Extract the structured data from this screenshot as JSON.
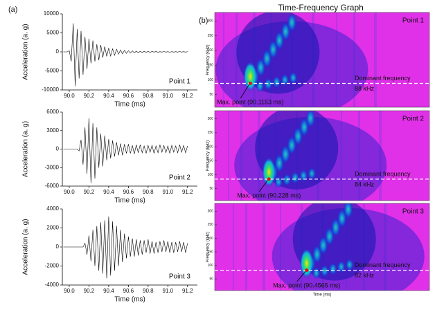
{
  "panel_labels": [
    "(a)",
    "(b)"
  ],
  "title": "Time-Frequency Graph",
  "chart_data": [
    {
      "type": "line",
      "color": "#000000",
      "point_label": "Point 1",
      "x_label": "Time (ms)",
      "y_label": "Acceleration (a. g)",
      "xlim": [
        89.93,
        91.3
      ],
      "ylim": [
        -10000,
        10000
      ],
      "xticks": [
        {
          "value": 90,
          "label": "90.0"
        },
        90.2,
        90.4,
        90.6,
        90.8,
        {
          "value": 91,
          "label": "91.0"
        },
        91.2
      ],
      "yticks": [
        -10000,
        -5000,
        0,
        5000,
        10000
      ],
      "x": [
        89.94,
        89.96,
        89.98,
        90.0,
        90.02,
        90.04,
        90.06,
        90.08,
        90.1,
        90.12,
        90.14,
        90.16,
        90.18,
        90.2,
        90.22,
        90.24,
        90.26,
        90.28,
        90.3,
        90.32,
        90.34,
        90.36,
        90.38,
        90.4,
        90.42,
        90.44,
        90.46,
        90.48,
        90.5,
        90.52,
        90.54,
        90.56,
        90.58,
        90.6,
        90.62,
        90.64,
        90.66,
        90.68,
        90.7,
        90.72,
        90.74,
        90.76,
        90.78,
        90.8,
        90.82,
        90.84,
        90.86,
        90.88,
        90.9,
        90.92,
        90.94,
        90.96,
        90.98,
        91.0,
        91.02,
        91.04,
        91.06,
        91.08,
        91.1,
        91.12,
        91.14,
        91.16,
        91.18,
        91.2
      ],
      "values": [
        0,
        0,
        0,
        300,
        -2500,
        7500,
        -9000,
        6000,
        -7000,
        5500,
        -6000,
        4000,
        -4500,
        3500,
        -3000,
        3000,
        -2500,
        2000,
        -2200,
        1800,
        -1500,
        1400,
        -1200,
        1000,
        -1100,
        800,
        -900,
        700,
        -600,
        500,
        -500,
        400,
        -400,
        300,
        -300,
        250,
        -250,
        200,
        -200,
        150,
        -150,
        150,
        -100,
        100,
        -100,
        100,
        -50,
        100,
        -100,
        50,
        -50,
        100,
        -50,
        50,
        -100,
        50,
        -50,
        50,
        -50,
        100,
        -50,
        50,
        -50,
        50
      ]
    },
    {
      "type": "line",
      "color": "#000000",
      "point_label": "Point 2",
      "x_label": "Time (ms)",
      "y_label": "Acceleration (a. g)",
      "xlim": [
        89.93,
        91.3
      ],
      "ylim": [
        -6000,
        6000
      ],
      "xticks": [
        {
          "value": 90,
          "label": "90.0"
        },
        90.2,
        90.4,
        90.6,
        90.8,
        {
          "value": 91,
          "label": "91.0"
        },
        91.2
      ],
      "yticks": [
        -6000,
        -3000,
        0,
        3000,
        6000
      ],
      "x": [
        89.94,
        89.96,
        89.98,
        90.0,
        90.02,
        90.04,
        90.06,
        90.08,
        90.1,
        90.12,
        90.14,
        90.16,
        90.18,
        90.2,
        90.22,
        90.24,
        90.26,
        90.28,
        90.3,
        90.32,
        90.34,
        90.36,
        90.38,
        90.4,
        90.42,
        90.44,
        90.46,
        90.48,
        90.5,
        90.52,
        90.54,
        90.56,
        90.58,
        90.6,
        90.62,
        90.64,
        90.66,
        90.68,
        90.7,
        90.72,
        90.74,
        90.76,
        90.78,
        90.8,
        90.82,
        90.84,
        90.86,
        90.88,
        90.9,
        90.92,
        90.94,
        90.96,
        90.98,
        91.0,
        91.02,
        91.04,
        91.06,
        91.08,
        91.1,
        91.12,
        91.14,
        91.16,
        91.18,
        91.2
      ],
      "values": [
        0,
        0,
        0,
        0,
        0,
        0,
        0,
        0,
        -300,
        1500,
        -2500,
        3500,
        -4000,
        5000,
        -5500,
        4200,
        -4800,
        3500,
        -3000,
        2500,
        -2800,
        2200,
        -1800,
        1600,
        -1500,
        1400,
        -1200,
        1100,
        -1000,
        900,
        -1000,
        800,
        -700,
        800,
        -700,
        600,
        -800,
        700,
        -600,
        700,
        -600,
        500,
        -700,
        600,
        -500,
        600,
        -700,
        500,
        -600,
        700,
        -500,
        600,
        -600,
        500,
        -700,
        600,
        -500,
        500,
        -600,
        700,
        -500,
        600,
        -600,
        500
      ]
    },
    {
      "type": "line",
      "color": "#000000",
      "point_label": "Point 3",
      "x_label": "Time (ms)",
      "y_label": "Acceleration (a. g)",
      "xlim": [
        89.93,
        91.3
      ],
      "ylim": [
        -4000,
        4000
      ],
      "xticks": [
        {
          "value": 90,
          "label": "90.0"
        },
        90.2,
        90.4,
        90.6,
        90.8,
        {
          "value": 91,
          "label": "91.0"
        },
        91.2
      ],
      "yticks": [
        -4000,
        -2000,
        0,
        2000,
        4000
      ],
      "x": [
        89.94,
        89.96,
        89.98,
        90.0,
        90.02,
        90.04,
        90.06,
        90.08,
        90.1,
        90.12,
        90.14,
        90.16,
        90.18,
        90.2,
        90.22,
        90.24,
        90.26,
        90.28,
        90.3,
        90.32,
        90.34,
        90.36,
        90.38,
        90.4,
        90.42,
        90.44,
        90.46,
        90.48,
        90.5,
        90.52,
        90.54,
        90.56,
        90.58,
        90.6,
        90.62,
        90.64,
        90.66,
        90.68,
        90.7,
        90.72,
        90.74,
        90.76,
        90.78,
        90.8,
        90.82,
        90.84,
        90.86,
        90.88,
        90.9,
        90.92,
        90.94,
        90.96,
        90.98,
        91.0,
        91.02,
        91.04,
        91.06,
        91.08,
        91.1,
        91.12,
        91.14,
        91.16,
        91.18,
        91.2
      ],
      "values": [
        0,
        0,
        0,
        0,
        0,
        0,
        0,
        0,
        0,
        0,
        0,
        400,
        -800,
        1200,
        -1500,
        1800,
        -2000,
        2200,
        -2500,
        2600,
        -2800,
        2800,
        -3300,
        3200,
        -3000,
        2700,
        -2500,
        2200,
        -2000,
        1800,
        -1600,
        1400,
        -1200,
        1100,
        -1000,
        900,
        -1000,
        800,
        -900,
        700,
        -800,
        700,
        -600,
        800,
        -700,
        600,
        -700,
        500,
        -600,
        600,
        -500,
        700,
        -500,
        600,
        -600,
        500,
        -600,
        500,
        -500,
        600,
        -500,
        500,
        -600,
        400
      ]
    },
    {
      "type": "spectrogram",
      "point_label": "Point 1",
      "y_label": "Frequency (kHz)",
      "xlim": [
        89.9,
        91.2
      ],
      "ylim": [
        7,
        329
      ],
      "yticks": [
        50,
        100,
        150,
        200,
        250,
        300
      ],
      "dominant_frequency": 88,
      "dominant_text": "Dominant frequency",
      "dominant_label": "88 kHz",
      "max_time": 90.1153,
      "max_label": "Max. point (90.1153 ms)"
    },
    {
      "type": "spectrogram",
      "point_label": "Point 2",
      "y_label": "Frequency (kHz)",
      "xlim": [
        89.9,
        91.2
      ],
      "ylim": [
        7,
        329
      ],
      "yticks": [
        50,
        100,
        150,
        200,
        250,
        300
      ],
      "dominant_frequency": 84,
      "dominant_text": "Dominant frequency",
      "dominant_label": "84 kHz",
      "max_time": 90.228,
      "max_label": "Max. point (90.228 ms)"
    },
    {
      "type": "spectrogram",
      "point_label": "Point 3",
      "y_label": "Frequency (kHz)",
      "x_label": "Time (ms)",
      "xlim": [
        89.9,
        91.2
      ],
      "ylim": [
        7,
        329
      ],
      "yticks": [
        50,
        100,
        150,
        200,
        250,
        300
      ],
      "dominant_frequency": 82,
      "dominant_text": "Dominant frequency",
      "dominant_label": "82 kHz",
      "max_time": 90.4565,
      "max_label": "Max. point (90.4565 ms)"
    }
  ]
}
